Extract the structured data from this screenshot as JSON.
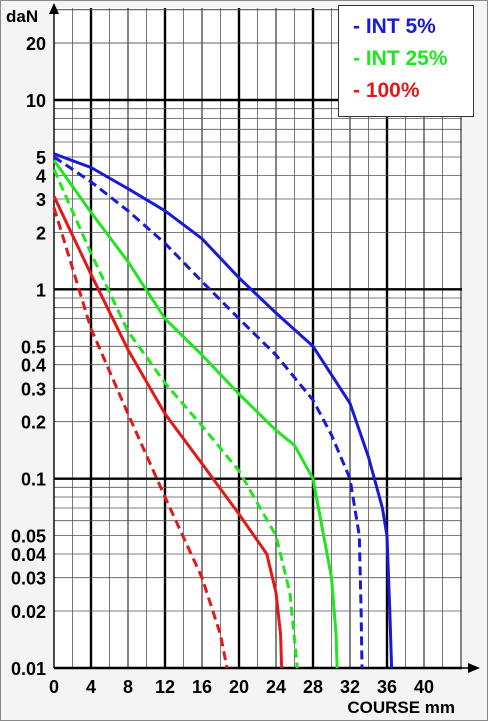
{
  "chart_data": {
    "type": "line",
    "y_unit": "daN",
    "xlabel": "COURSE mm",
    "yscale": "log",
    "xlim": [
      0,
      44
    ],
    "ylim": [
      0.01,
      30
    ],
    "x_ticks": [
      "0",
      "4",
      "8",
      "12",
      "16",
      "20",
      "24",
      "28",
      "32",
      "36",
      "40"
    ],
    "y_ticks": [
      "0.01",
      "0.02",
      "0.03",
      "0.04",
      "0.05",
      "0.1",
      "0.2",
      "0.3",
      "0.4",
      "0.5",
      "1",
      "2",
      "3",
      "4",
      "5",
      "10",
      "20"
    ],
    "grid": true,
    "legend_position": "top-right",
    "legend": [
      {
        "label": "- INT 5%",
        "color": "#1a1ad6"
      },
      {
        "label": "- INT 25%",
        "color": "#1fe61f"
      },
      {
        "label": "- 100%",
        "color": "#e01a1a"
      }
    ],
    "series": [
      {
        "color": "#1a1ad6",
        "dash": false,
        "points": [
          [
            0,
            5.2
          ],
          [
            4,
            4.4
          ],
          [
            8,
            3.4
          ],
          [
            12,
            2.6
          ],
          [
            16,
            1.85
          ],
          [
            20,
            1.15
          ],
          [
            24,
            0.75
          ],
          [
            28,
            0.5
          ],
          [
            32,
            0.25
          ],
          [
            34,
            0.13
          ],
          [
            35.5,
            0.07
          ],
          [
            36,
            0.05
          ],
          [
            36.3,
            0.02
          ],
          [
            36.5,
            0.01
          ]
        ]
      },
      {
        "color": "#1a1ad6",
        "dash": true,
        "points": [
          [
            0,
            5.0
          ],
          [
            4,
            3.7
          ],
          [
            8,
            2.6
          ],
          [
            12,
            1.75
          ],
          [
            16,
            1.1
          ],
          [
            20,
            0.7
          ],
          [
            24,
            0.45
          ],
          [
            28,
            0.26
          ],
          [
            30,
            0.17
          ],
          [
            32,
            0.1
          ],
          [
            33,
            0.05
          ],
          [
            33.2,
            0.02
          ],
          [
            33.3,
            0.01
          ]
        ]
      },
      {
        "color": "#1fe61f",
        "dash": false,
        "points": [
          [
            0,
            4.8
          ],
          [
            4,
            2.55
          ],
          [
            8,
            1.4
          ],
          [
            12,
            0.7
          ],
          [
            16,
            0.45
          ],
          [
            20,
            0.28
          ],
          [
            24,
            0.18
          ],
          [
            26,
            0.15
          ],
          [
            28,
            0.1
          ],
          [
            30,
            0.03
          ],
          [
            30.5,
            0.015
          ],
          [
            30.6,
            0.01
          ]
        ]
      },
      {
        "color": "#1fe61f",
        "dash": true,
        "points": [
          [
            0,
            4.3
          ],
          [
            4,
            1.55
          ],
          [
            8,
            0.6
          ],
          [
            12,
            0.32
          ],
          [
            16,
            0.19
          ],
          [
            20,
            0.11
          ],
          [
            24,
            0.05
          ],
          [
            25.5,
            0.025
          ],
          [
            26.3,
            0.01
          ]
        ]
      },
      {
        "color": "#e01a1a",
        "dash": false,
        "points": [
          [
            0,
            3.1
          ],
          [
            4,
            1.2
          ],
          [
            8,
            0.48
          ],
          [
            12,
            0.22
          ],
          [
            16,
            0.12
          ],
          [
            20,
            0.065
          ],
          [
            23,
            0.04
          ],
          [
            24,
            0.025
          ],
          [
            24.5,
            0.015
          ],
          [
            24.6,
            0.01
          ]
        ]
      },
      {
        "color": "#e01a1a",
        "dash": true,
        "points": [
          [
            0,
            2.7
          ],
          [
            4,
            0.62
          ],
          [
            8,
            0.22
          ],
          [
            12,
            0.08
          ],
          [
            16,
            0.03
          ],
          [
            18,
            0.015
          ],
          [
            18.7,
            0.01
          ]
        ]
      }
    ]
  }
}
